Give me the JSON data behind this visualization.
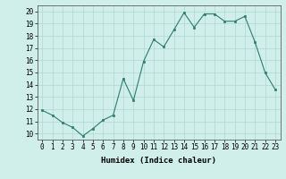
{
  "x": [
    0,
    1,
    2,
    3,
    4,
    5,
    6,
    7,
    8,
    9,
    10,
    11,
    12,
    13,
    14,
    15,
    16,
    17,
    18,
    19,
    20,
    21,
    22,
    23
  ],
  "y": [
    11.9,
    11.5,
    10.9,
    10.5,
    9.8,
    10.4,
    11.1,
    11.5,
    14.5,
    12.7,
    15.9,
    17.7,
    17.1,
    18.5,
    19.9,
    18.7,
    19.8,
    19.8,
    19.2,
    19.2,
    19.6,
    17.5,
    15.0,
    13.6
  ],
  "xlabel": "Humidex (Indice chaleur)",
  "xlim": [
    -0.5,
    23.5
  ],
  "ylim": [
    9.5,
    20.5
  ],
  "yticks": [
    10,
    11,
    12,
    13,
    14,
    15,
    16,
    17,
    18,
    19,
    20
  ],
  "xticks": [
    0,
    1,
    2,
    3,
    4,
    5,
    6,
    7,
    8,
    9,
    10,
    11,
    12,
    13,
    14,
    15,
    16,
    17,
    18,
    19,
    20,
    21,
    22,
    23
  ],
  "line_color": "#2e7d6e",
  "marker_color": "#2e7d6e",
  "bg_color": "#d0eeea",
  "grid_color": "#b0d8d0",
  "label_fontsize": 6.5,
  "tick_fontsize": 5.5
}
